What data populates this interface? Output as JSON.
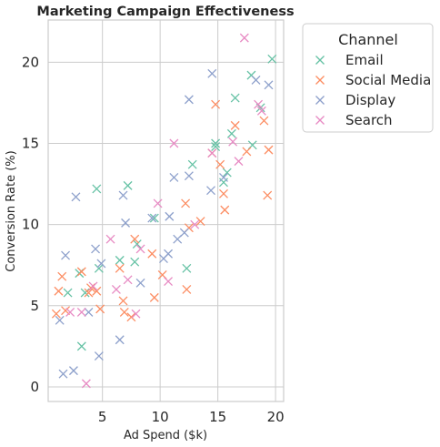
{
  "chart_data": {
    "type": "scatter",
    "title": "Marketing Campaign Effectiveness",
    "xlabel": "Ad Spend ($k)",
    "ylabel": "Conversion Rate (%)",
    "xlim": [
      0.3,
      20.7
    ],
    "ylim": [
      -0.9,
      22.6
    ],
    "xticks": [
      5,
      10,
      15,
      20
    ],
    "yticks": [
      0,
      5,
      10,
      15,
      20
    ],
    "grid": true,
    "marker": "x",
    "legend": {
      "title": "Channel",
      "placement": "outside-top-right"
    },
    "series": [
      {
        "name": "Email",
        "color": "#66c2a5",
        "points": [
          [
            2.0,
            5.8
          ],
          [
            3.2,
            2.5
          ],
          [
            3.0,
            7.0
          ],
          [
            3.5,
            5.8
          ],
          [
            4.5,
            12.2
          ],
          [
            4.7,
            7.3
          ],
          [
            6.5,
            7.8
          ],
          [
            7.2,
            12.4
          ],
          [
            7.8,
            7.7
          ],
          [
            8.0,
            8.8
          ],
          [
            9.5,
            10.4
          ],
          [
            12.3,
            7.3
          ],
          [
            12.8,
            13.7
          ],
          [
            14.8,
            14.8
          ],
          [
            14.8,
            15.0
          ],
          [
            15.5,
            12.6
          ],
          [
            15.8,
            13.2
          ],
          [
            16.2,
            15.6
          ],
          [
            16.5,
            17.8
          ],
          [
            17.9,
            19.2
          ],
          [
            18.0,
            14.9
          ],
          [
            18.7,
            17.2
          ],
          [
            19.7,
            20.2
          ]
        ]
      },
      {
        "name": "Social Media",
        "color": "#fc8d62",
        "points": [
          [
            1.0,
            4.5
          ],
          [
            1.2,
            5.9
          ],
          [
            1.5,
            6.8
          ],
          [
            1.8,
            4.7
          ],
          [
            3.2,
            7.1
          ],
          [
            3.8,
            5.8
          ],
          [
            4.0,
            6.1
          ],
          [
            4.5,
            5.9
          ],
          [
            4.8,
            4.8
          ],
          [
            6.5,
            7.3
          ],
          [
            6.8,
            5.3
          ],
          [
            6.9,
            4.6
          ],
          [
            7.5,
            4.3
          ],
          [
            7.8,
            9.1
          ],
          [
            9.3,
            8.2
          ],
          [
            9.5,
            5.5
          ],
          [
            10.2,
            6.9
          ],
          [
            12.2,
            11.3
          ],
          [
            12.3,
            6.0
          ],
          [
            12.5,
            9.8
          ],
          [
            13.5,
            10.2
          ],
          [
            14.5,
            14.4
          ],
          [
            14.8,
            17.4
          ],
          [
            15.2,
            13.7
          ],
          [
            15.5,
            11.9
          ],
          [
            15.6,
            10.9
          ],
          [
            16.5,
            16.1
          ],
          [
            17.5,
            14.5
          ],
          [
            19.0,
            16.4
          ],
          [
            19.3,
            11.8
          ],
          [
            19.4,
            14.6
          ]
        ]
      },
      {
        "name": "Display",
        "color": "#8da0cb",
        "points": [
          [
            1.3,
            4.1
          ],
          [
            1.6,
            0.8
          ],
          [
            1.8,
            8.1
          ],
          [
            2.5,
            1.0
          ],
          [
            2.7,
            11.7
          ],
          [
            3.8,
            4.6
          ],
          [
            4.4,
            8.5
          ],
          [
            4.7,
            1.9
          ],
          [
            4.9,
            7.6
          ],
          [
            6.5,
            2.9
          ],
          [
            6.8,
            11.8
          ],
          [
            7.0,
            10.1
          ],
          [
            8.3,
            6.4
          ],
          [
            9.3,
            10.4
          ],
          [
            10.3,
            7.9
          ],
          [
            10.7,
            8.2
          ],
          [
            10.8,
            10.5
          ],
          [
            11.2,
            12.9
          ],
          [
            11.5,
            9.1
          ],
          [
            12.1,
            9.5
          ],
          [
            12.5,
            17.7
          ],
          [
            12.5,
            13.0
          ],
          [
            14.4,
            12.1
          ],
          [
            14.5,
            19.3
          ],
          [
            15.5,
            12.9
          ],
          [
            18.3,
            18.9
          ],
          [
            19.4,
            18.6
          ]
        ]
      },
      {
        "name": "Search",
        "color": "#e78ac3",
        "points": [
          [
            2.2,
            4.6
          ],
          [
            3.2,
            4.6
          ],
          [
            3.6,
            0.2
          ],
          [
            4.2,
            6.2
          ],
          [
            5.7,
            9.1
          ],
          [
            6.2,
            6.0
          ],
          [
            7.2,
            6.6
          ],
          [
            7.9,
            4.5
          ],
          [
            8.3,
            8.5
          ],
          [
            9.8,
            11.3
          ],
          [
            10.7,
            6.5
          ],
          [
            11.2,
            15.0
          ],
          [
            13.0,
            10.0
          ],
          [
            14.5,
            14.4
          ],
          [
            16.3,
            15.1
          ],
          [
            16.8,
            13.9
          ],
          [
            17.3,
            21.5
          ],
          [
            18.5,
            17.4
          ],
          [
            18.8,
            17.0
          ]
        ]
      }
    ]
  }
}
